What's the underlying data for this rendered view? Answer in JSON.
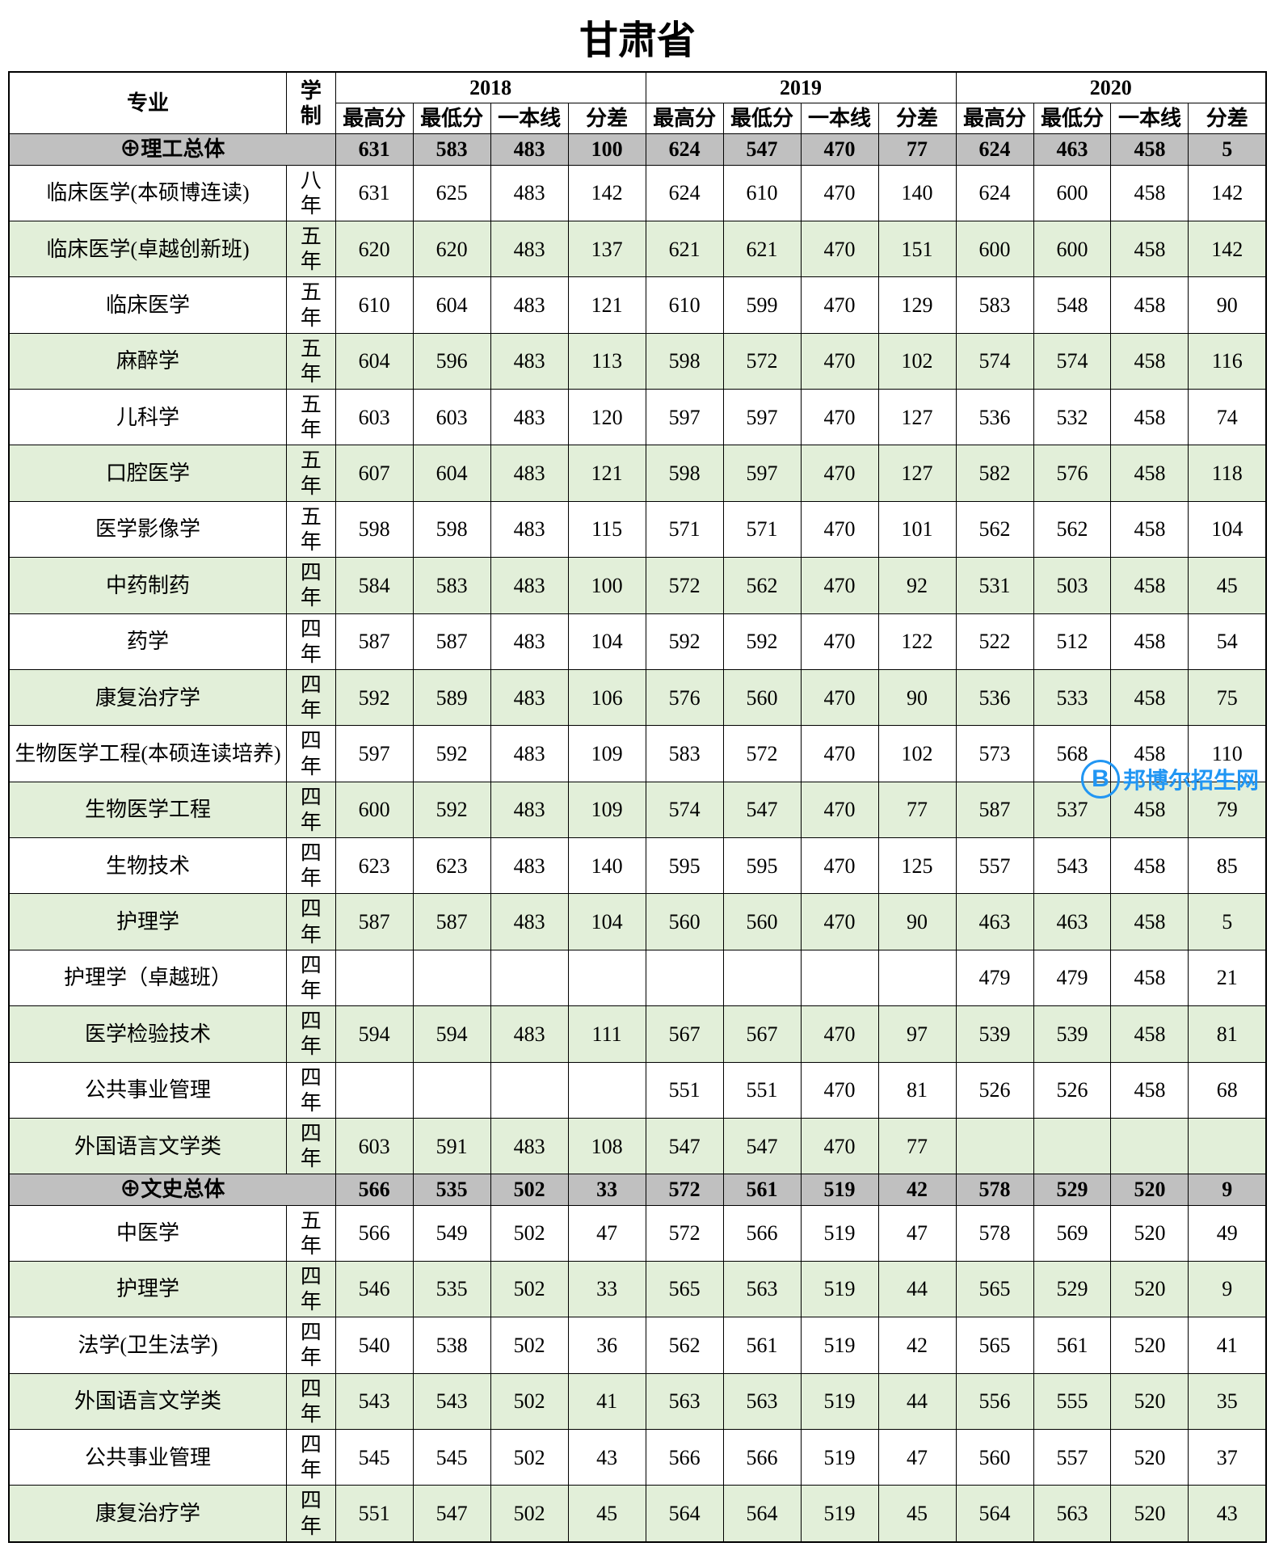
{
  "title": "甘肃省",
  "headers": {
    "major": "专业",
    "duration": "学制",
    "years": [
      "2018",
      "2019",
      "2020"
    ],
    "subcols": [
      "最高分",
      "最低分",
      "一本线",
      "分差"
    ]
  },
  "colors": {
    "summary_bg": "#c0c0c0",
    "even_bg": "#e2efd9",
    "odd_bg": "#ffffff",
    "border": "#000000"
  },
  "science_summary": {
    "label": "⊕理工总体",
    "data": [
      "631",
      "583",
      "483",
      "100",
      "624",
      "547",
      "470",
      "77",
      "624",
      "463",
      "458",
      "5"
    ]
  },
  "science_rows": [
    {
      "major": "临床医学(本硕博连读)",
      "duration": "八年",
      "data": [
        "631",
        "625",
        "483",
        "142",
        "624",
        "610",
        "470",
        "140",
        "624",
        "600",
        "458",
        "142"
      ]
    },
    {
      "major": "临床医学(卓越创新班)",
      "duration": "五年",
      "data": [
        "620",
        "620",
        "483",
        "137",
        "621",
        "621",
        "470",
        "151",
        "600",
        "600",
        "458",
        "142"
      ]
    },
    {
      "major": "临床医学",
      "duration": "五年",
      "data": [
        "610",
        "604",
        "483",
        "121",
        "610",
        "599",
        "470",
        "129",
        "583",
        "548",
        "458",
        "90"
      ]
    },
    {
      "major": "麻醉学",
      "duration": "五年",
      "data": [
        "604",
        "596",
        "483",
        "113",
        "598",
        "572",
        "470",
        "102",
        "574",
        "574",
        "458",
        "116"
      ]
    },
    {
      "major": "儿科学",
      "duration": "五年",
      "data": [
        "603",
        "603",
        "483",
        "120",
        "597",
        "597",
        "470",
        "127",
        "536",
        "532",
        "458",
        "74"
      ]
    },
    {
      "major": "口腔医学",
      "duration": "五年",
      "data": [
        "607",
        "604",
        "483",
        "121",
        "598",
        "597",
        "470",
        "127",
        "582",
        "576",
        "458",
        "118"
      ]
    },
    {
      "major": "医学影像学",
      "duration": "五年",
      "data": [
        "598",
        "598",
        "483",
        "115",
        "571",
        "571",
        "470",
        "101",
        "562",
        "562",
        "458",
        "104"
      ]
    },
    {
      "major": "中药制药",
      "duration": "四年",
      "data": [
        "584",
        "583",
        "483",
        "100",
        "572",
        "562",
        "470",
        "92",
        "531",
        "503",
        "458",
        "45"
      ]
    },
    {
      "major": "药学",
      "duration": "四年",
      "data": [
        "587",
        "587",
        "483",
        "104",
        "592",
        "592",
        "470",
        "122",
        "522",
        "512",
        "458",
        "54"
      ]
    },
    {
      "major": "康复治疗学",
      "duration": "四年",
      "data": [
        "592",
        "589",
        "483",
        "106",
        "576",
        "560",
        "470",
        "90",
        "536",
        "533",
        "458",
        "75"
      ]
    },
    {
      "major": "生物医学工程(本硕连读培养)",
      "duration": "四年",
      "data": [
        "597",
        "592",
        "483",
        "109",
        "583",
        "572",
        "470",
        "102",
        "573",
        "568",
        "458",
        "110"
      ]
    },
    {
      "major": "生物医学工程",
      "duration": "四年",
      "data": [
        "600",
        "592",
        "483",
        "109",
        "574",
        "547",
        "470",
        "77",
        "587",
        "537",
        "458",
        "79"
      ]
    },
    {
      "major": "生物技术",
      "duration": "四年",
      "data": [
        "623",
        "623",
        "483",
        "140",
        "595",
        "595",
        "470",
        "125",
        "557",
        "543",
        "458",
        "85"
      ]
    },
    {
      "major": "护理学",
      "duration": "四年",
      "data": [
        "587",
        "587",
        "483",
        "104",
        "560",
        "560",
        "470",
        "90",
        "463",
        "463",
        "458",
        "5"
      ]
    },
    {
      "major": "护理学（卓越班）",
      "duration": "四年",
      "data": [
        "",
        "",
        "",
        "",
        "",
        "",
        "",
        "",
        "479",
        "479",
        "458",
        "21"
      ]
    },
    {
      "major": "医学检验技术",
      "duration": "四年",
      "data": [
        "594",
        "594",
        "483",
        "111",
        "567",
        "567",
        "470",
        "97",
        "539",
        "539",
        "458",
        "81"
      ]
    },
    {
      "major": "公共事业管理",
      "duration": "四年",
      "data": [
        "",
        "",
        "",
        "",
        "551",
        "551",
        "470",
        "81",
        "526",
        "526",
        "458",
        "68"
      ]
    },
    {
      "major": "外国语言文学类",
      "duration": "四年",
      "data": [
        "603",
        "591",
        "483",
        "108",
        "547",
        "547",
        "470",
        "77",
        "",
        "",
        "",
        ""
      ]
    }
  ],
  "arts_summary": {
    "label": "⊕文史总体",
    "data": [
      "566",
      "535",
      "502",
      "33",
      "572",
      "561",
      "519",
      "42",
      "578",
      "529",
      "520",
      "9"
    ]
  },
  "arts_rows": [
    {
      "major": "中医学",
      "duration": "五年",
      "data": [
        "566",
        "549",
        "502",
        "47",
        "572",
        "566",
        "519",
        "47",
        "578",
        "569",
        "520",
        "49"
      ]
    },
    {
      "major": "护理学",
      "duration": "四年",
      "data": [
        "546",
        "535",
        "502",
        "33",
        "565",
        "563",
        "519",
        "44",
        "565",
        "529",
        "520",
        "9"
      ]
    },
    {
      "major": "法学(卫生法学)",
      "duration": "四年",
      "data": [
        "540",
        "538",
        "502",
        "36",
        "562",
        "561",
        "519",
        "42",
        "565",
        "561",
        "520",
        "41"
      ]
    },
    {
      "major": "外国语言文学类",
      "duration": "四年",
      "data": [
        "543",
        "543",
        "502",
        "41",
        "563",
        "563",
        "519",
        "44",
        "556",
        "555",
        "520",
        "35"
      ]
    },
    {
      "major": "公共事业管理",
      "duration": "四年",
      "data": [
        "545",
        "545",
        "502",
        "43",
        "566",
        "566",
        "519",
        "47",
        "560",
        "557",
        "520",
        "37"
      ]
    },
    {
      "major": "康复治疗学",
      "duration": "四年",
      "data": [
        "551",
        "547",
        "502",
        "45",
        "564",
        "564",
        "519",
        "45",
        "564",
        "563",
        "520",
        "43"
      ]
    }
  ],
  "watermark": {
    "icon": "B",
    "text": "邦博尔招生网"
  }
}
